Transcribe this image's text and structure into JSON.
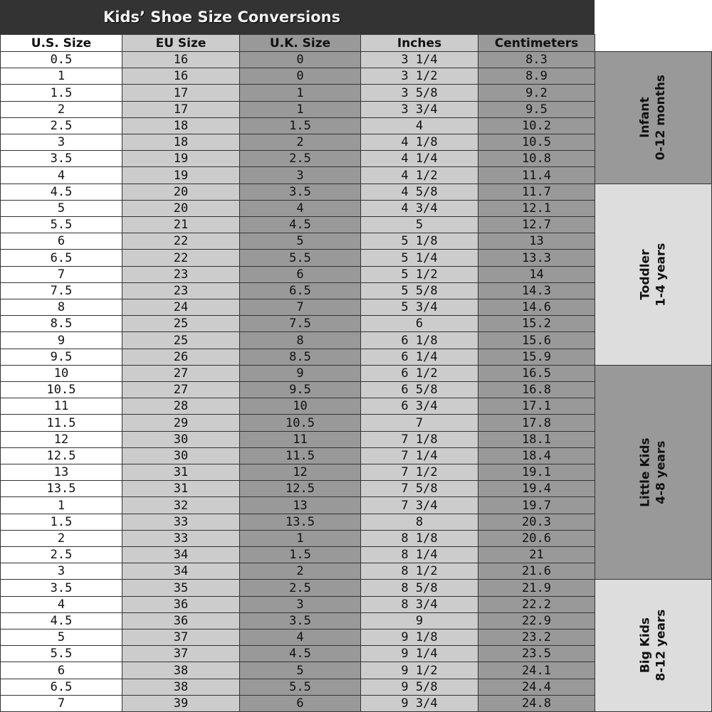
{
  "title": "Kids’ Shoe Size Conversions",
  "columns": [
    "U.S. Size",
    "EU Size",
    "U.K. Size",
    "Inches",
    "Centimeters"
  ],
  "column_colors": [
    "#ffffff",
    "#cccccc",
    "#999999",
    "#cccccc",
    "#999999"
  ],
  "rows": [
    [
      "0.5",
      "16",
      "0",
      "3 1/4",
      "8.3"
    ],
    [
      "1",
      "16",
      "0",
      "3 1/2",
      "8.9"
    ],
    [
      "1.5",
      "17",
      "1",
      "3 5/8",
      "9.2"
    ],
    [
      "2",
      "17",
      "1",
      "3 3/4",
      "9.5"
    ],
    [
      "2.5",
      "18",
      "1.5",
      "4",
      "10.2"
    ],
    [
      "3",
      "18",
      "2",
      "4 1/8",
      "10.5"
    ],
    [
      "3.5",
      "19",
      "2.5",
      "4 1/4",
      "10.8"
    ],
    [
      "4",
      "19",
      "3",
      "4 1/2",
      "11.4"
    ],
    [
      "4.5",
      "20",
      "3.5",
      "4 5/8",
      "11.7"
    ],
    [
      "5",
      "20",
      "4",
      "4 3/4",
      "12.1"
    ],
    [
      "5.5",
      "21",
      "4.5",
      "5",
      "12.7"
    ],
    [
      "6",
      "22",
      "5",
      "5 1/8",
      "13"
    ],
    [
      "6.5",
      "22",
      "5.5",
      "5 1/4",
      "13.3"
    ],
    [
      "7",
      "23",
      "6",
      "5 1/2",
      "14"
    ],
    [
      "7.5",
      "23",
      "6.5",
      "5 5/8",
      "14.3"
    ],
    [
      "8",
      "24",
      "7",
      "5 3/4",
      "14.6"
    ],
    [
      "8.5",
      "25",
      "7.5",
      "6",
      "15.2"
    ],
    [
      "9",
      "25",
      "8",
      "6 1/8",
      "15.6"
    ],
    [
      "9.5",
      "26",
      "8.5",
      "6 1/4",
      "15.9"
    ],
    [
      "10",
      "27",
      "9",
      "6 1/2",
      "16.5"
    ],
    [
      "10.5",
      "27",
      "9.5",
      "6 5/8",
      "16.8"
    ],
    [
      "11",
      "28",
      "10",
      "6 3/4",
      "17.1"
    ],
    [
      "11.5",
      "29",
      "10.5",
      "7",
      "17.8"
    ],
    [
      "12",
      "30",
      "11",
      "7 1/8",
      "18.1"
    ],
    [
      "12.5",
      "30",
      "11.5",
      "7 1/4",
      "18.4"
    ],
    [
      "13",
      "31",
      "12",
      "7 1/2",
      "19.1"
    ],
    [
      "13.5",
      "31",
      "12.5",
      "7 5/8",
      "19.4"
    ],
    [
      "1",
      "32",
      "13",
      "7 3/4",
      "19.7"
    ],
    [
      "1.5",
      "33",
      "13.5",
      "8",
      "20.3"
    ],
    [
      "2",
      "33",
      "1",
      "8 1/8",
      "20.6"
    ],
    [
      "2.5",
      "34",
      "1.5",
      "8 1/4",
      "21"
    ],
    [
      "3",
      "34",
      "2",
      "8 1/2",
      "21.6"
    ],
    [
      "3.5",
      "35",
      "2.5",
      "8 5/8",
      "21.9"
    ],
    [
      "4",
      "36",
      "3",
      "8 3/4",
      "22.2"
    ],
    [
      "4.5",
      "36",
      "3.5",
      "9",
      "22.9"
    ],
    [
      "5",
      "37",
      "4",
      "9 1/8",
      "23.2"
    ],
    [
      "5.5",
      "37",
      "4.5",
      "9 1/4",
      "23.5"
    ],
    [
      "6",
      "38",
      "5",
      "9 1/2",
      "24.1"
    ],
    [
      "6.5",
      "38",
      "5.5",
      "9 5/8",
      "24.4"
    ],
    [
      "7",
      "39",
      "6",
      "9 3/4",
      "24.8"
    ]
  ],
  "groups": [
    {
      "name": "Infant",
      "range": "0-12 months",
      "row_count": 8,
      "color": "#999999"
    },
    {
      "name": "Toddler",
      "range": "1-4 years",
      "row_count": 11,
      "color": "#dddddd"
    },
    {
      "name": "Little Kids",
      "range": "4-8 years",
      "row_count": 13,
      "color": "#999999"
    },
    {
      "name": "Big Kids",
      "range": "8-12 years",
      "row_count": 8,
      "color": "#dddddd"
    }
  ]
}
